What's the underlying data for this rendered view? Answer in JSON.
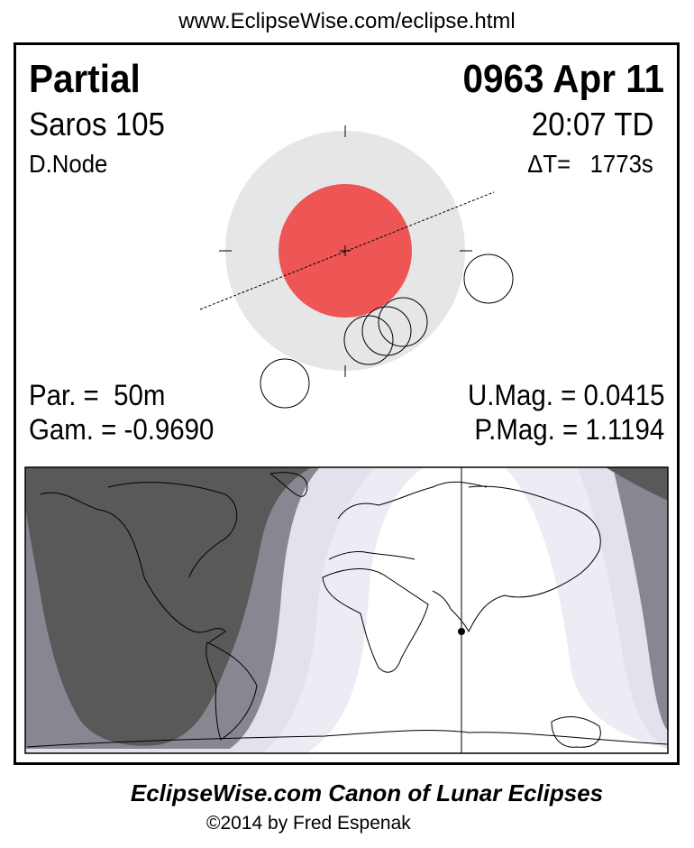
{
  "url": "www.EclipseWise.com/eclipse.html",
  "header": {
    "type": "Partial",
    "date": "0963 Apr 11",
    "saros": "Saros 105",
    "time": "20:07 TD",
    "node": "D.Node",
    "delta_t": "ΔT=   1773s"
  },
  "stats": {
    "partial_duration": "Par. =  50m",
    "gamma": "Gam. = -0.9690",
    "umbral_magnitude": "U.Mag. = 0.0415",
    "penumbral_magnitude": "P.Mag. = 1.1194"
  },
  "colors": {
    "penumbra": "#e6e6e6",
    "umbra": "#ee5555",
    "map_dark": "#595959",
    "map_mid": "#878792",
    "map_light": "#e2e2ec",
    "map_lighter": "#ececf4"
  },
  "footer": {
    "title": "EclipseWise.com Canon of Lunar Eclipses",
    "copyright": "©2014 by Fred Espenak"
  }
}
